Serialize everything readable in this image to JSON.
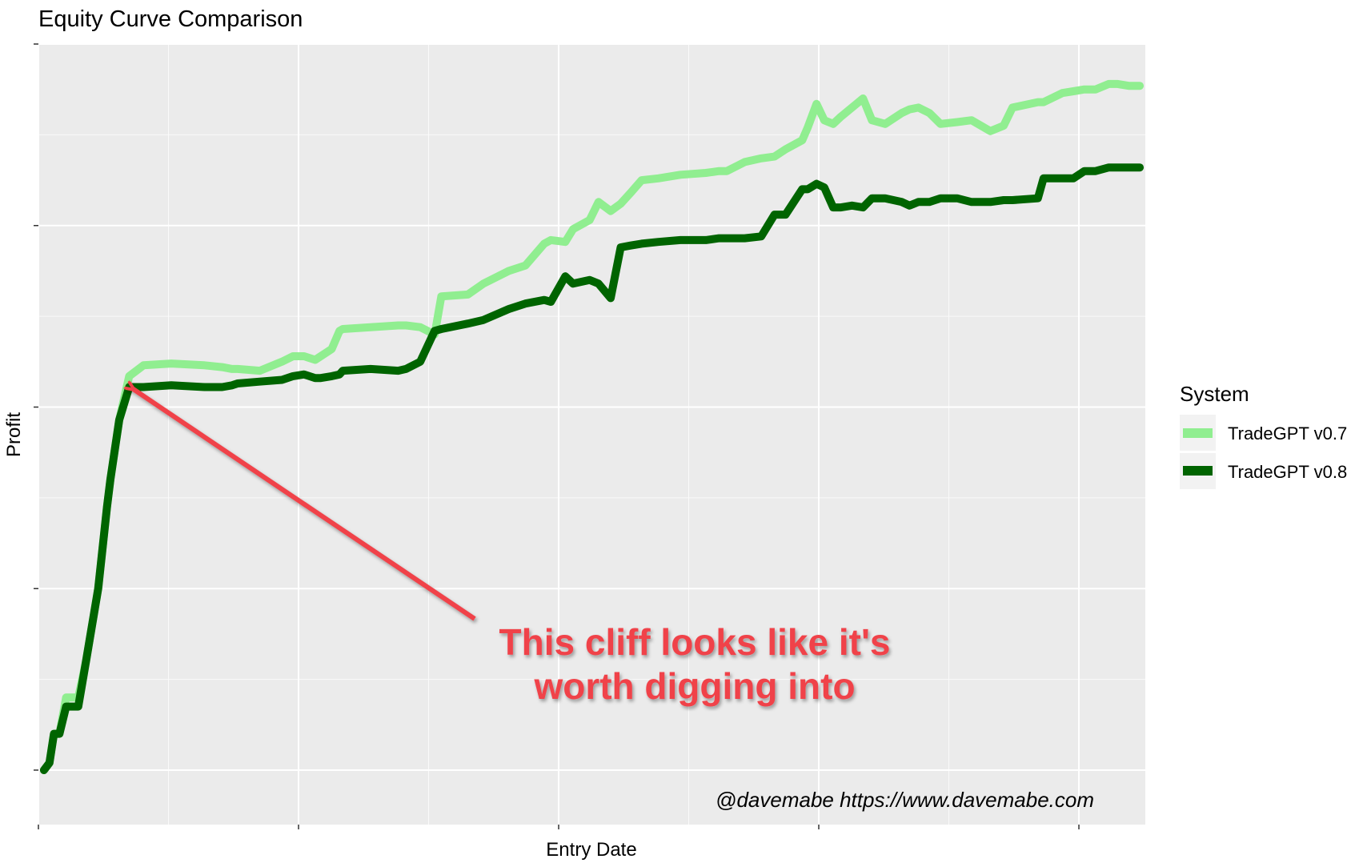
{
  "chart_data": {
    "type": "line",
    "title": "Equity Curve Comparison",
    "xlabel": "Entry Date",
    "ylabel": "Profit",
    "x_tick_labels_shown": false,
    "y_tick_labels_shown": false,
    "grid": true,
    "legend": {
      "title": "System",
      "position": "right"
    },
    "xlim": [
      0,
      100
    ],
    "ylim": [
      -3,
      40
    ],
    "x_major_breaks": [
      0,
      23.5,
      47,
      70.5,
      94
    ],
    "x_minor_breaks": [
      11.75,
      35.25,
      58.75,
      82.25
    ],
    "y_major_breaks": [
      0,
      10,
      20,
      30,
      40
    ],
    "y_minor_breaks": [
      5,
      15,
      25,
      35
    ],
    "series": [
      {
        "name": "TradeGPT v0.7",
        "color": "#90ee90",
        "x": [
          0.5,
          1.0,
          1.4,
          1.9,
          2.5,
          3.6,
          4.3,
          5.4,
          6.2,
          6.5,
          7.3,
          8.2,
          9.5,
          12.0,
          15.0,
          16.6,
          17.5,
          18.0,
          20.0,
          22.0,
          23.0,
          24.0,
          25.0,
          25.5,
          26.5,
          27.2,
          27.5,
          30.0,
          32.5,
          33.2,
          34.5,
          35.8,
          36.4,
          38.8,
          40.2,
          42.5,
          44.0,
          45.7,
          46.3,
          47.6,
          48.3,
          49.8,
          50.6,
          51.7,
          52.6,
          53.5,
          54.5,
          56.0,
          58.0,
          60.3,
          61.5,
          62.2,
          63.8,
          65.3,
          66.5,
          67.5,
          69.0,
          69.5,
          70.3,
          71.0,
          71.8,
          72.5,
          73.5,
          74.5,
          75.3,
          76.5,
          78.0,
          78.7,
          79.5,
          80.5,
          81.5,
          83.0,
          84.3,
          86.0,
          87.2,
          88.0,
          90.3,
          90.8,
          91.5,
          92.5,
          93.5,
          94.5,
          95.5,
          96.7,
          97.5,
          98.5,
          99.5
        ],
        "y": [
          0,
          0.4,
          2.0,
          2.0,
          4.0,
          4.0,
          6.0,
          10.0,
          14.5,
          16.0,
          19.3,
          21.7,
          22.3,
          22.4,
          22.3,
          22.2,
          22.1,
          22.1,
          22.0,
          22.5,
          22.8,
          22.8,
          22.6,
          22.8,
          23.2,
          24.2,
          24.3,
          24.4,
          24.5,
          24.5,
          24.4,
          24.0,
          26.1,
          26.2,
          26.8,
          27.5,
          27.8,
          29.0,
          29.2,
          29.1,
          29.8,
          30.3,
          31.3,
          30.8,
          31.2,
          31.8,
          32.5,
          32.6,
          32.8,
          32.9,
          33.0,
          33.0,
          33.5,
          33.7,
          33.8,
          34.2,
          34.7,
          35.4,
          36.7,
          35.8,
          35.6,
          36.0,
          36.5,
          37.0,
          35.8,
          35.6,
          36.2,
          36.4,
          36.5,
          36.2,
          35.6,
          35.7,
          35.8,
          35.2,
          35.5,
          36.5,
          36.8,
          36.8,
          37.0,
          37.3,
          37.4,
          37.5,
          37.5,
          37.8,
          37.8,
          37.7,
          37.7
        ]
      },
      {
        "name": "TradeGPT v0.8",
        "color": "#006400",
        "x": [
          0.5,
          1.0,
          1.4,
          1.9,
          2.5,
          3.6,
          4.3,
          5.4,
          6.2,
          6.5,
          7.3,
          8.2,
          9.5,
          12.0,
          15.0,
          16.6,
          17.5,
          18.0,
          20.0,
          22.0,
          23.0,
          24.0,
          25.0,
          25.5,
          26.5,
          27.2,
          27.5,
          30.0,
          32.5,
          33.2,
          34.5,
          35.8,
          36.4,
          38.8,
          40.2,
          42.5,
          44.0,
          45.7,
          46.3,
          47.6,
          48.3,
          49.8,
          50.6,
          51.7,
          52.6,
          53.5,
          54.5,
          56.0,
          58.0,
          60.3,
          61.5,
          62.2,
          63.8,
          65.3,
          66.5,
          67.5,
          69.0,
          69.5,
          70.3,
          71.0,
          71.8,
          72.5,
          73.5,
          74.5,
          75.3,
          76.5,
          78.0,
          78.7,
          79.5,
          80.5,
          81.5,
          83.0,
          84.3,
          86.0,
          87.2,
          88.0,
          90.3,
          90.8,
          91.5,
          92.5,
          93.5,
          94.5,
          95.5,
          96.7,
          97.5,
          98.5,
          99.5
        ],
        "y": [
          0,
          0.4,
          2.0,
          2.0,
          3.5,
          3.5,
          6.0,
          10.0,
          14.5,
          16.0,
          19.3,
          21.1,
          21.1,
          21.2,
          21.1,
          21.1,
          21.2,
          21.3,
          21.4,
          21.5,
          21.7,
          21.8,
          21.6,
          21.6,
          21.7,
          21.8,
          22.0,
          22.1,
          22.0,
          22.1,
          22.5,
          24.2,
          24.3,
          24.6,
          24.8,
          25.4,
          25.7,
          25.9,
          25.8,
          27.2,
          26.8,
          27.0,
          26.8,
          26.0,
          28.8,
          28.9,
          29.0,
          29.1,
          29.2,
          29.2,
          29.3,
          29.3,
          29.3,
          29.4,
          30.6,
          30.6,
          32.0,
          32.0,
          32.3,
          32.1,
          31.0,
          31.0,
          31.1,
          31.0,
          31.5,
          31.5,
          31.3,
          31.1,
          31.3,
          31.3,
          31.5,
          31.5,
          31.3,
          31.3,
          31.4,
          31.4,
          31.5,
          32.6,
          32.6,
          32.6,
          32.6,
          33.0,
          33.0,
          33.2,
          33.2,
          33.2,
          33.2
        ]
      }
    ],
    "annotations": [
      {
        "text_line1": "This cliff looks like it's",
        "text_line2": "worth digging into",
        "color": "#f0434a",
        "type": "arrow",
        "points_to": {
          "x": 8.3,
          "y": 21.1
        }
      },
      {
        "text": "@davemabe https://www.davemabe.com",
        "color": "#000000"
      }
    ]
  }
}
